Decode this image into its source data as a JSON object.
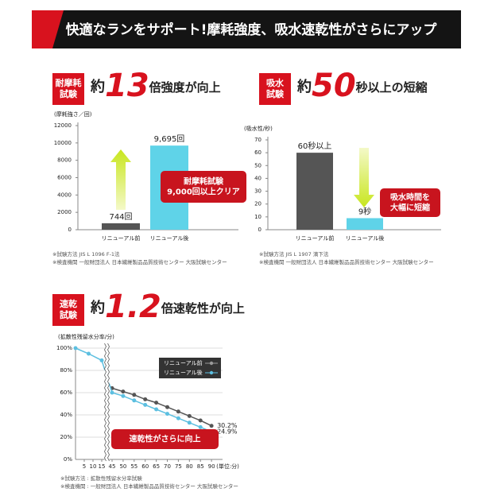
{
  "header": {
    "title": "快適なランをサポート!摩耗強度、吸水速乾性がさらにアップ"
  },
  "chart_data": [
    {
      "type": "bar",
      "badge": [
        "耐摩耗",
        "試験"
      ],
      "headline": {
        "prefix": "約",
        "number": "13",
        "suffix": "倍強度が向上"
      },
      "y_label": "(摩耗強さ／回)",
      "categories": [
        "リニューアル前",
        "リニューアル後"
      ],
      "values": [
        744,
        9695
      ],
      "value_labels": [
        "744回",
        "9,695回"
      ],
      "colors": [
        "#555555",
        "#5fd3e8"
      ],
      "ylim": [
        0,
        12000
      ],
      "yticks": [
        0,
        2000,
        4000,
        6000,
        8000,
        10000,
        12000
      ],
      "grid": false,
      "arrow": "up",
      "callout": [
        "耐摩耗試験",
        "9,000回以上クリア"
      ],
      "notes": [
        "※試験方法 JIS L 1096 F-1法",
        "※検査機関 一般財団法人 日本繊維製品品質技術センター 大阪試験センター"
      ]
    },
    {
      "type": "bar",
      "badge": [
        "吸水",
        "試験"
      ],
      "headline": {
        "prefix": "約",
        "number": "50",
        "suffix": "秒以上の短縮"
      },
      "y_label": "(吸水性/秒)",
      "categories": [
        "リニューアル前",
        "リニューアル後"
      ],
      "values": [
        60,
        9
      ],
      "value_labels": [
        "60秒以上",
        "9秒"
      ],
      "colors": [
        "#555555",
        "#5fd3e8"
      ],
      "ylim": [
        0,
        70
      ],
      "yticks": [
        0,
        10,
        20,
        30,
        40,
        50,
        60,
        70
      ],
      "grid": false,
      "arrow": "down",
      "callout": [
        "吸水時間を",
        "大幅に短縮"
      ],
      "notes": [
        "※試験方法 JIS L 1907 滴下法",
        "※検査機関 一般財団法人 日本繊維製品品質技術センター 大阪試験センター"
      ]
    },
    {
      "type": "line",
      "badge": [
        "速乾",
        "試験"
      ],
      "headline": {
        "prefix": "約",
        "number": "1.2",
        "suffix": "倍速乾性が向上"
      },
      "y_label": "(拡散性残留水分率/分)",
      "x_unit": "(単位:分)",
      "x": [
        0,
        7.5,
        15,
        45,
        50,
        55,
        60,
        65,
        70,
        75,
        80,
        85,
        90
      ],
      "series": [
        {
          "name": "リニューアル前",
          "color": "#555555",
          "values": [
            null,
            null,
            null,
            64,
            61,
            58,
            54,
            51,
            47,
            43,
            39,
            35,
            30.2
          ],
          "value_labels": [
            null,
            null,
            null,
            null,
            null,
            null,
            null,
            null,
            null,
            null,
            null,
            null,
            "30.2%"
          ]
        },
        {
          "name": "リニューアル後",
          "color": "#5cbfe0",
          "values": [
            100,
            95,
            89,
            60,
            57,
            53,
            49,
            45,
            41,
            37,
            33,
            29,
            24.9
          ],
          "value_labels": [
            null,
            null,
            null,
            null,
            null,
            null,
            null,
            null,
            null,
            null,
            null,
            null,
            "24.9%"
          ]
        }
      ],
      "xlim": [
        0,
        95
      ],
      "xticks": [
        5,
        10,
        15,
        45,
        50,
        55,
        60,
        65,
        70,
        75,
        80,
        85,
        90
      ],
      "xbreak": [
        15,
        45
      ],
      "ylim": [
        0,
        100
      ],
      "yticks": [
        {
          "value": 0,
          "label": "0%"
        },
        {
          "value": 20,
          "label": "20%"
        },
        {
          "value": 40,
          "label": "40%"
        },
        {
          "value": 60,
          "label": "60%"
        },
        {
          "value": 80,
          "label": "80%"
        },
        {
          "value": 100,
          "label": "100%"
        }
      ],
      "grid": true,
      "legend": "upper right",
      "callout": [
        "速乾性がさらに向上"
      ],
      "notes": [
        "※試験方法 : 拡散性残留水分率試験",
        "※検査機関 : 一般財団法人 日本繊維製品品質技術センター 大阪試験センター"
      ]
    }
  ]
}
